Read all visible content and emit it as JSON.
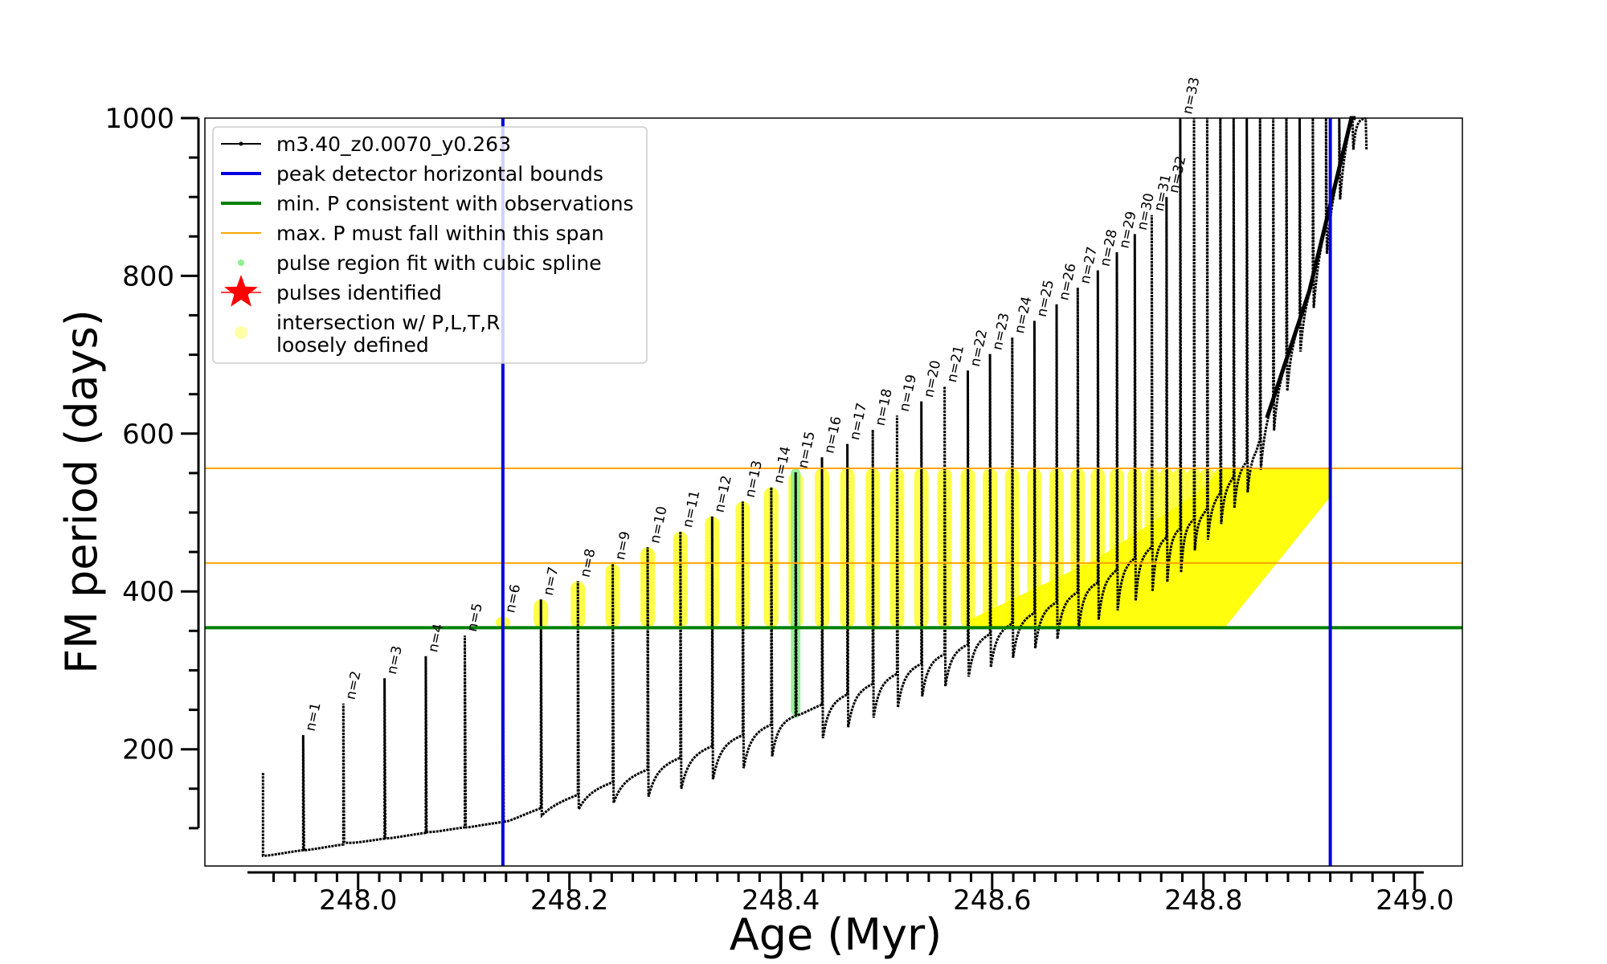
{
  "chart_data": {
    "type": "line",
    "xlabel": "Age (Myr)",
    "ylabel": "FM period (days)",
    "xlim": [
      247.855,
      249.045
    ],
    "ylim": [
      52,
      1000
    ],
    "xticks": [
      248.0,
      248.2,
      248.4,
      248.6,
      248.8,
      249.0
    ],
    "xtick_labels": [
      "248.0",
      "248.2",
      "248.4",
      "248.6",
      "248.8",
      "249.0"
    ],
    "yticks": [
      200,
      400,
      600,
      800,
      1000
    ],
    "ytick_labels": [
      "200",
      "400",
      "600",
      "800",
      "1000"
    ],
    "colors": {
      "track": "#000000",
      "bounds": "#0000dd",
      "min_p": "#008000",
      "max_p_span": "#ffa500",
      "spline": "#90ee90",
      "pulse": "#ff0000",
      "intersection": "#ffff00"
    },
    "peak_detector_bounds_age": [
      248.137,
      248.92
    ],
    "min_period": 354,
    "max_period_span": [
      436,
      556
    ],
    "baseline": {
      "age": [
        247.91,
        248.137,
        248.414,
        248.58,
        248.7,
        248.8,
        248.85,
        248.9,
        248.94
      ],
      "period": [
        65,
        108,
        243,
        335,
        412,
        500,
        580,
        780,
        1000
      ]
    },
    "pulses": {
      "labels": [
        "n=1",
        "n=2",
        "n=3",
        "n=4",
        "n=5",
        "n=6",
        "n=7",
        "n=8",
        "n=9",
        "n=10",
        "n=11",
        "n=12",
        "n=13",
        "n=14",
        "n=15",
        "n=16",
        "n=17",
        "n=18",
        "n=19",
        "n=20",
        "n=21",
        "n=22",
        "n=23",
        "n=24",
        "n=25",
        "n=26",
        "n=27",
        "n=28",
        "n=29",
        "n=30",
        "n=31",
        "n=32",
        "n=33"
      ],
      "age": [
        247.948,
        247.986,
        248.025,
        248.064,
        248.101,
        248.137,
        248.173,
        248.208,
        248.241,
        248.274,
        248.305,
        248.335,
        248.364,
        248.391,
        248.414,
        248.439,
        248.463,
        248.487,
        248.51,
        248.533,
        248.555,
        248.577,
        248.598,
        248.619,
        248.64,
        248.661,
        248.681,
        248.7,
        248.718,
        248.735,
        248.751,
        248.765,
        248.778
      ],
      "peak_period": [
        218,
        258,
        290,
        318,
        344,
        368,
        390,
        413,
        435,
        456,
        476,
        495,
        514,
        532,
        551,
        570,
        587,
        605,
        623,
        641,
        660,
        680,
        701,
        722,
        743,
        764,
        785,
        807,
        830,
        853,
        877,
        900,
        1000
      ],
      "trough_period": [
        72,
        82,
        87,
        95,
        101,
        108,
        116,
        124,
        132,
        140,
        150,
        162,
        176,
        191,
        243,
        214,
        228,
        240,
        253,
        267,
        280,
        292,
        304,
        316,
        328,
        340,
        352,
        364,
        376,
        388,
        400,
        412,
        424
      ]
    },
    "intersection_region": {
      "age_range": [
        248.137,
        248.92
      ],
      "period_range": [
        354,
        556
      ]
    },
    "spline_region": {
      "age": 248.414,
      "period_range": [
        243,
        556
      ]
    },
    "legend": {
      "position": "top-left",
      "entries": [
        {
          "label": "m3.40_z0.0070_y0.263",
          "style": "line-dots",
          "color": "#000000"
        },
        {
          "label": "peak detector horizontal bounds",
          "style": "line",
          "color": "#0000dd"
        },
        {
          "label": "min. P consistent with observations",
          "style": "line",
          "color": "#008000"
        },
        {
          "label": "max. P must fall within this span",
          "style": "thin-line",
          "color": "#ffa500"
        },
        {
          "label": "pulse region fit with cubic spline",
          "style": "dot",
          "color": "#90ee90"
        },
        {
          "label": "pulses identified",
          "style": "star",
          "color": "#ff0000"
        },
        {
          "label": "intersection w/ P,L,T,R",
          "label2": "loosely defined",
          "style": "circle",
          "color": "#ffff00"
        }
      ]
    }
  }
}
